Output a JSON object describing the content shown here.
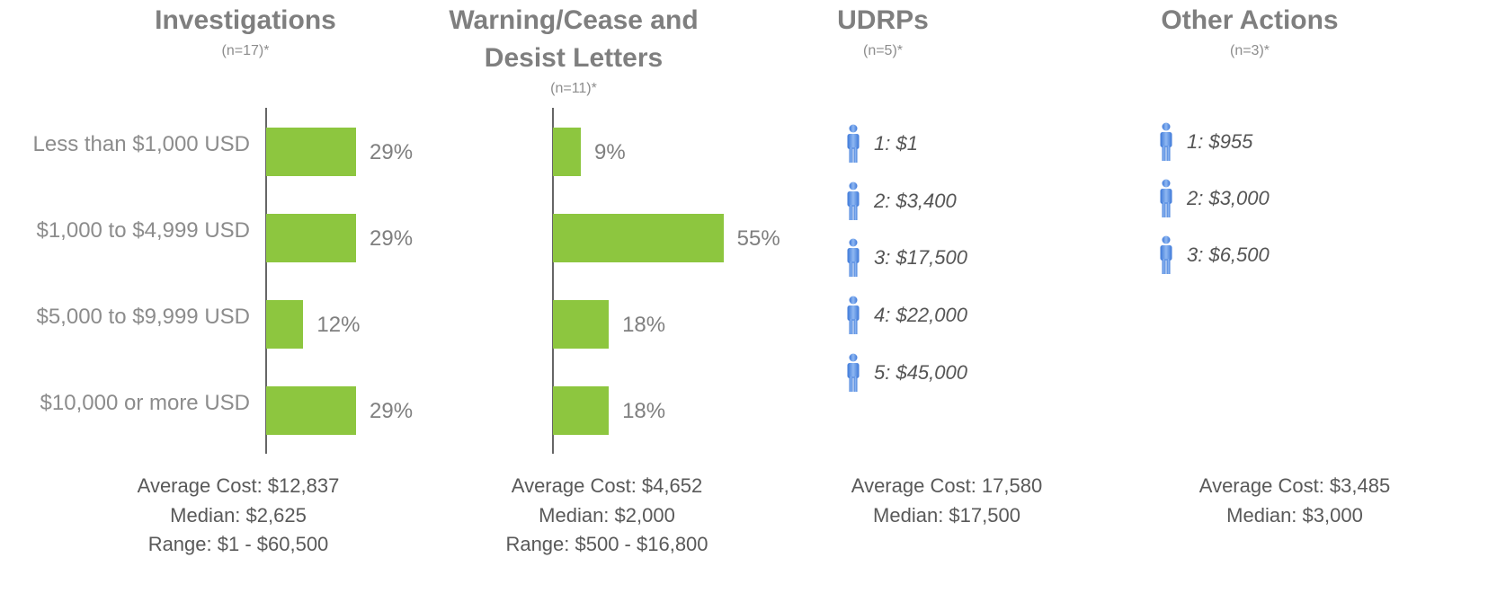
{
  "chart_data": [
    {
      "type": "bar",
      "title": "Investigations",
      "subtitle": "(n=17)*",
      "categories": [
        "Less than $1,000 USD",
        "$1,000 to $4,999 USD",
        "$5,000 to $9,999 USD",
        "$10,000 or more USD"
      ],
      "values": [
        29,
        29,
        12,
        29
      ],
      "value_labels": [
        "29%",
        "29%",
        "12%",
        "29%"
      ],
      "color": "#8dc63f",
      "notes": [
        "Average Cost:  $12,837",
        "Median:  $2,625",
        "Range:  $1 - $60,500"
      ]
    },
    {
      "type": "bar",
      "title": "Warning/Cease and Desist Letters",
      "subtitle": "(n=11)*",
      "categories": [
        null,
        null,
        null,
        null
      ],
      "values": [
        9,
        55,
        18,
        18
      ],
      "value_labels": [
        "9%",
        "55%",
        "18%",
        "18%"
      ],
      "color": "#8dc63f",
      "notes": [
        "Average Cost:  $4,652",
        "Median:  $2,000",
        "Range:  $500 - $16,800"
      ]
    },
    {
      "type": "list",
      "title": "UDRPs",
      "subtitle": "(n=5)*",
      "items": [
        "1:  $1",
        "2:  $3,400",
        "3:  $17,500",
        "4:  $22,000",
        "5:  $45,000"
      ],
      "notes": [
        "Average Cost:  17,580",
        "Median:  $17,500"
      ]
    },
    {
      "type": "list",
      "title": "Other Actions",
      "subtitle": "(n=3)*",
      "items": [
        "1:  $955",
        "2:  $3,000",
        "3:  $6,500"
      ],
      "notes": [
        "Average Cost:  $3,485",
        "Median:  $3,000"
      ]
    }
  ]
}
